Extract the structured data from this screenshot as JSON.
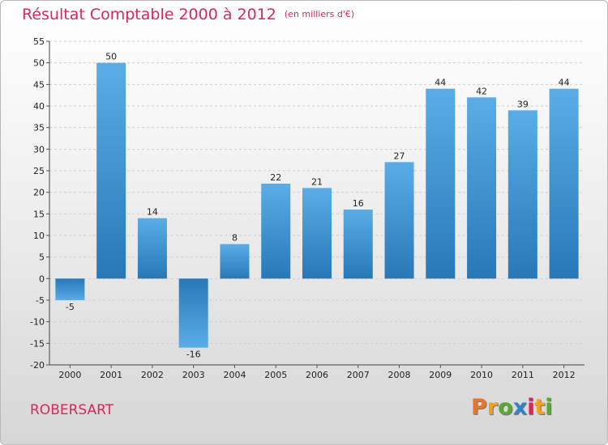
{
  "chart_data": {
    "type": "bar",
    "title": "Résultat Comptable 2000 à 2012",
    "subtitle": "(en milliers d'€)",
    "categories": [
      "2000",
      "2001",
      "2002",
      "2003",
      "2004",
      "2005",
      "2006",
      "2007",
      "2008",
      "2009",
      "2010",
      "2011",
      "2012"
    ],
    "values": [
      -5,
      50,
      14,
      -16,
      8,
      22,
      21,
      16,
      27,
      44,
      42,
      39,
      44
    ],
    "ylim": [
      -20,
      55
    ],
    "yticks": [
      -20,
      -15,
      -10,
      -5,
      0,
      5,
      10,
      15,
      20,
      25,
      30,
      35,
      40,
      45,
      50,
      55
    ],
    "grid": true,
    "xlabel": "",
    "ylabel": ""
  },
  "commune": "ROBERSART",
  "logo": {
    "letters": [
      "P",
      "r",
      "o",
      "x",
      "i",
      "t",
      "i"
    ],
    "colors": [
      "#e8762a",
      "#f0a21e",
      "#5aa832",
      "#2e86c8",
      "#d8285a",
      "#f0a21e",
      "#5aa832"
    ]
  },
  "colors": {
    "title": "#d8285a",
    "bar_light": "#5aade6",
    "bar_dark": "#2878b8"
  }
}
